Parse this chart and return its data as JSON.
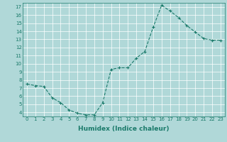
{
  "x": [
    0,
    1,
    2,
    3,
    4,
    5,
    6,
    7,
    8,
    9,
    10,
    11,
    12,
    13,
    14,
    15,
    16,
    17,
    18,
    19,
    20,
    21,
    22,
    23
  ],
  "y": [
    7.5,
    7.3,
    7.2,
    5.8,
    5.2,
    4.3,
    3.9,
    3.7,
    3.7,
    5.2,
    9.3,
    9.5,
    9.5,
    10.7,
    11.5,
    14.5,
    17.2,
    16.5,
    15.7,
    14.7,
    13.9,
    13.1,
    12.9,
    12.9
  ],
  "xlim": [
    -0.5,
    23.5
  ],
  "ylim": [
    3.5,
    17.5
  ],
  "yticks": [
    4,
    5,
    6,
    7,
    8,
    9,
    10,
    11,
    12,
    13,
    14,
    15,
    16,
    17
  ],
  "xticks": [
    0,
    1,
    2,
    3,
    4,
    5,
    6,
    7,
    8,
    9,
    10,
    11,
    12,
    13,
    14,
    15,
    16,
    17,
    18,
    19,
    20,
    21,
    22,
    23
  ],
  "xlabel": "Humidex (Indice chaleur)",
  "line_color": "#1a7a6a",
  "marker": "+",
  "bg_color": "#b0d8d8",
  "grid_color": "#ffffff",
  "tick_color": "#1a7a6a",
  "label_color": "#1a7a6a",
  "linestyle": "--",
  "linewidth": 0.8,
  "markersize": 3,
  "tick_fontsize": 5,
  "xlabel_fontsize": 6.5
}
